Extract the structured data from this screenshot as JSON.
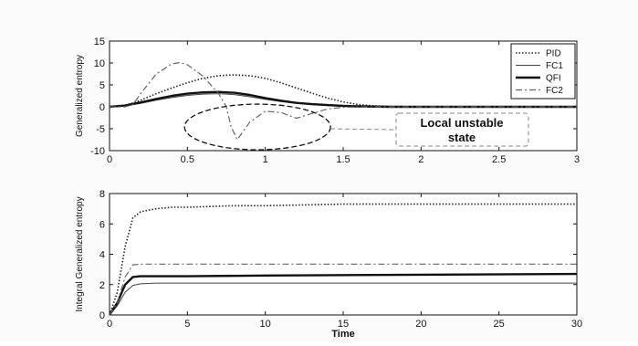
{
  "chart_data": [
    {
      "type": "line",
      "xlabel": "",
      "ylabel": "Generalized entropy",
      "xlim": [
        0,
        3
      ],
      "ylim": [
        -10,
        15
      ],
      "xticks": [
        0,
        0.5,
        1,
        1.5,
        2,
        2.5,
        3
      ],
      "xtick_labels": [
        "0",
        "0.5",
        "1",
        "1.5",
        "2",
        "2.5",
        "3"
      ],
      "yticks": [
        -10,
        -5,
        0,
        5,
        10,
        15
      ],
      "ytick_labels": [
        "-10",
        "-5",
        "0",
        "5",
        "10",
        "15"
      ],
      "grid": false,
      "legend_position": "top-right",
      "series": [
        {
          "name": "PID",
          "style": "dotted",
          "x": [
            0,
            0.1,
            0.2,
            0.3,
            0.4,
            0.5,
            0.6,
            0.7,
            0.8,
            0.9,
            1.0,
            1.1,
            1.2,
            1.3,
            1.4,
            1.5,
            1.6,
            1.7,
            1.8,
            2.0,
            2.5,
            3.0
          ],
          "y": [
            0,
            0.3,
            1.5,
            3.0,
            4.3,
            5.5,
            6.5,
            7.1,
            7.3,
            7.1,
            6.5,
            5.5,
            4.3,
            3.1,
            2.0,
            1.1,
            0.5,
            0.2,
            0.1,
            0,
            0,
            0
          ]
        },
        {
          "name": "FC1",
          "style": "solid-thin",
          "x": [
            0,
            0.1,
            0.2,
            0.3,
            0.4,
            0.5,
            0.6,
            0.7,
            0.8,
            0.9,
            1.0,
            1.1,
            1.2,
            1.3,
            1.4,
            1.5,
            1.6,
            1.8,
            2.0,
            2.5,
            3.0
          ],
          "y": [
            0,
            0.2,
            0.8,
            1.5,
            2.1,
            2.6,
            2.9,
            3.0,
            2.8,
            2.3,
            1.7,
            1.2,
            0.8,
            0.5,
            0.3,
            0.2,
            0.1,
            0,
            0,
            0,
            0
          ]
        },
        {
          "name": "QFI",
          "style": "solid-thick",
          "x": [
            0,
            0.1,
            0.2,
            0.3,
            0.4,
            0.5,
            0.6,
            0.7,
            0.8,
            0.9,
            1.0,
            1.1,
            1.2,
            1.3,
            1.4,
            1.5,
            1.6,
            1.8,
            2.0,
            2.5,
            3.0
          ],
          "y": [
            0,
            0.3,
            1.0,
            1.8,
            2.5,
            3.0,
            3.3,
            3.4,
            3.2,
            2.7,
            2.0,
            1.4,
            0.9,
            0.6,
            0.4,
            0.2,
            0.1,
            0,
            0,
            0,
            0
          ]
        },
        {
          "name": "FC2",
          "style": "dash-dot",
          "x": [
            0,
            0.1,
            0.15,
            0.2,
            0.3,
            0.4,
            0.45,
            0.5,
            0.6,
            0.7,
            0.75,
            0.78,
            0.82,
            0.9,
            1.0,
            1.1,
            1.2,
            1.3,
            1.4,
            1.5,
            1.7,
            2.0,
            2.5,
            3.0
          ],
          "y": [
            0,
            0,
            0.5,
            3.0,
            7.5,
            9.8,
            10.1,
            9.6,
            7.0,
            3.0,
            0,
            -4.5,
            -7.5,
            -3.5,
            -1.0,
            -1.3,
            -2.6,
            -1.5,
            -0.5,
            -0.1,
            0,
            0,
            0,
            0
          ]
        }
      ],
      "annotations": [
        {
          "text": "Local unstable state"
        }
      ]
    },
    {
      "type": "line",
      "xlabel": "Time",
      "ylabel": "Integral Generalized entropy",
      "xlim": [
        0,
        30
      ],
      "ylim": [
        0,
        8
      ],
      "xticks": [
        0,
        5,
        10,
        15,
        20,
        25,
        30
      ],
      "xtick_labels": [
        "0",
        "5",
        "10",
        "15",
        "20",
        "25",
        "30"
      ],
      "yticks": [
        0,
        2,
        4,
        6,
        8
      ],
      "ytick_labels": [
        "0",
        "2",
        "4",
        "6",
        "8"
      ],
      "grid": false,
      "series": [
        {
          "name": "PID",
          "style": "dotted",
          "x": [
            0,
            0.5,
            1.0,
            1.5,
            2.0,
            3.0,
            4.0,
            5.0,
            8.0,
            10.0,
            15.0,
            20.0,
            25.0,
            30.0
          ],
          "y": [
            0,
            1.5,
            4.5,
            6.4,
            6.8,
            7.0,
            7.1,
            7.1,
            7.2,
            7.2,
            7.3,
            7.3,
            7.3,
            7.3
          ]
        },
        {
          "name": "FC1",
          "style": "solid-thin",
          "x": [
            0,
            0.5,
            1.0,
            1.5,
            2.0,
            3.0,
            5.0,
            10.0,
            20.0,
            30.0
          ],
          "y": [
            0,
            0.6,
            1.5,
            1.95,
            2.05,
            2.1,
            2.1,
            2.1,
            2.1,
            2.1
          ]
        },
        {
          "name": "QFI",
          "style": "solid-thick",
          "x": [
            0,
            0.5,
            1.0,
            1.5,
            2.0,
            3.0,
            5.0,
            10.0,
            20.0,
            30.0
          ],
          "y": [
            0,
            0.8,
            2.0,
            2.5,
            2.55,
            2.55,
            2.55,
            2.6,
            2.65,
            2.7
          ]
        },
        {
          "name": "FC2",
          "style": "dash-dot",
          "x": [
            0,
            0.5,
            1.0,
            1.5,
            2.0,
            3.0,
            5.0,
            10.0,
            20.0,
            30.0
          ],
          "y": [
            0,
            0.8,
            2.5,
            3.3,
            3.35,
            3.35,
            3.35,
            3.35,
            3.35,
            3.35
          ]
        }
      ]
    }
  ]
}
